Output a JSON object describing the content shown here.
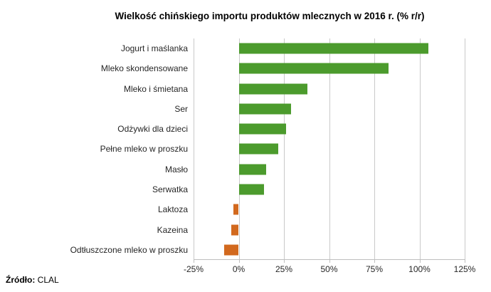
{
  "source": {
    "label": "Źródło:",
    "value": "CLAL"
  },
  "colors": {
    "positive_bar": "#4C9B2D",
    "negative_bar": "#D2691E",
    "gridline": "#C9C9C9",
    "text": "#262626"
  },
  "chart_data": {
    "type": "bar",
    "orientation": "horizontal",
    "title": "Wielkość chińskiego importu produktów mlecznych w 2016 r. (% r/r)",
    "categories": [
      "Jogurt i maślanka",
      "Mleko skondensowane",
      "Mleko i śmietana",
      "Ser",
      "Odżywki dla dzieci",
      "Pełne mleko w proszku",
      "Masło",
      "Serwatka",
      "Laktoza",
      "Kazeina",
      "Odtłuszczone mleko w proszku"
    ],
    "values": [
      105,
      83,
      38,
      29,
      26,
      22,
      15,
      14,
      -3,
      -4,
      -8
    ],
    "value_unit": "%",
    "xlabel": "",
    "ylabel": "",
    "xlim": [
      -25,
      125
    ],
    "xticks": [
      -25,
      0,
      25,
      50,
      75,
      100,
      125
    ],
    "xtick_labels": [
      "-25%",
      "0%",
      "25%",
      "50%",
      "75%",
      "100%",
      "125%"
    ],
    "grid": true,
    "legend": false,
    "positive_color": "#4C9B2D",
    "negative_color": "#D2691E"
  }
}
